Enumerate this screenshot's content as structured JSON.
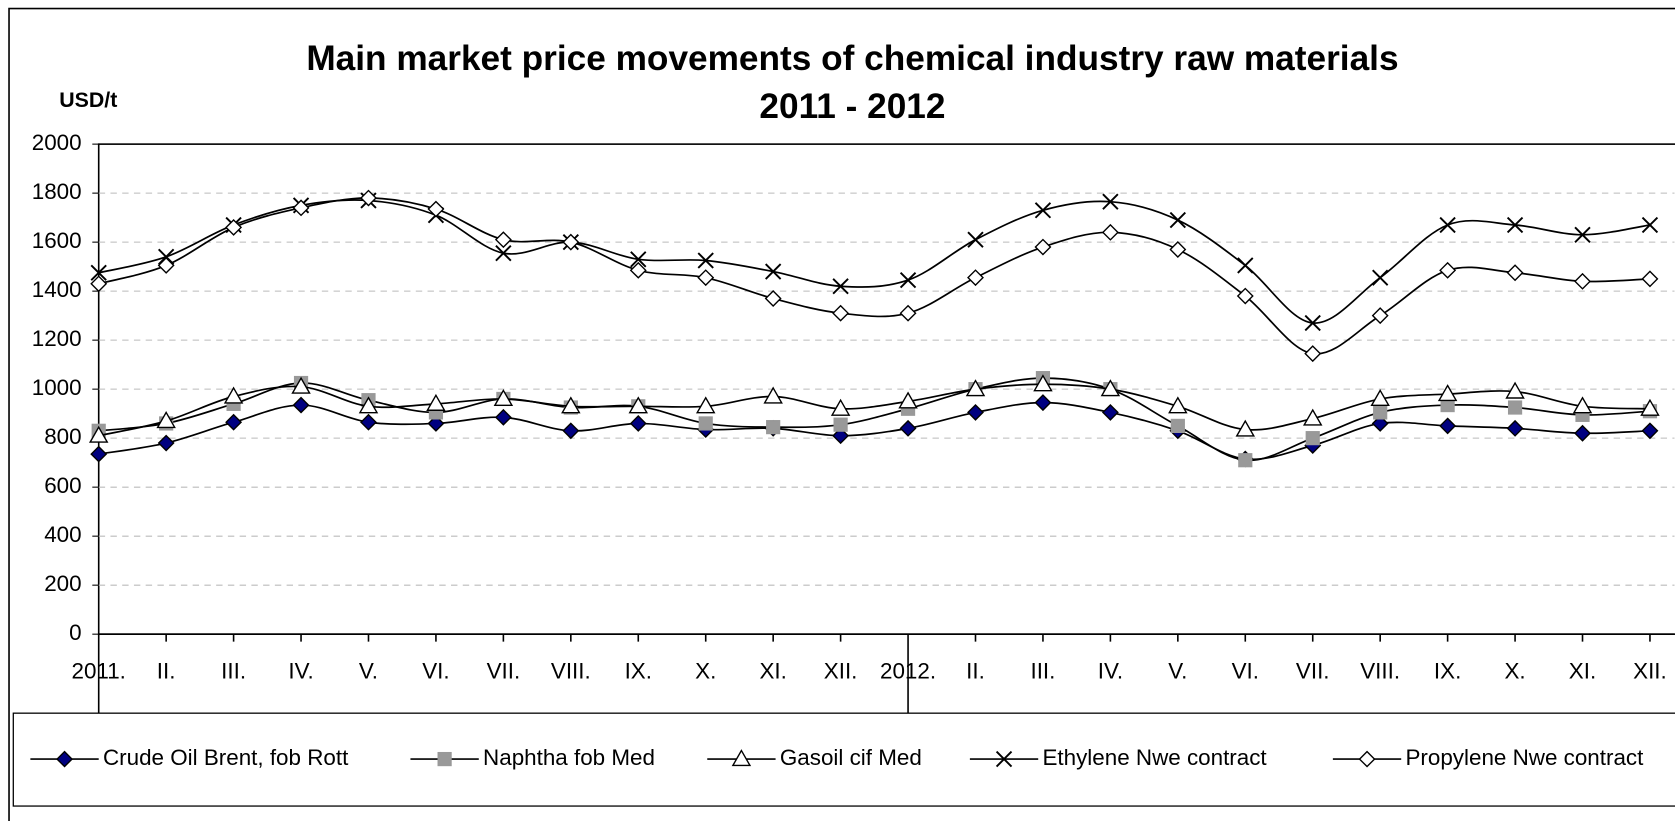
{
  "chart_data": {
    "type": "line",
    "title": "Main market price movements of chemical industry raw materials",
    "subtitle": "2011 - 2012",
    "y_label": "USD/t",
    "categories": [
      "2011.",
      "II.",
      "III.",
      "IV.",
      "V.",
      "VI.",
      "VII.",
      "VIII.",
      "IX.",
      "X.",
      "XI.",
      "XII.",
      "2012.",
      "II.",
      "III.",
      "IV.",
      "V.",
      "VI.",
      "VII.",
      "VIII.",
      "IX.",
      "X.",
      "XI.",
      "XII."
    ],
    "ylim": [
      0,
      2000
    ],
    "yticks": [
      0,
      200,
      400,
      600,
      800,
      1000,
      1200,
      1400,
      1600,
      1800,
      2000
    ],
    "grid": true,
    "legend": "bottom",
    "series": [
      {
        "name": "Crude Oil Brent, fob Rott",
        "color": "#000080",
        "marker": "diamond",
        "values": [
          735,
          780,
          865,
          935,
          865,
          860,
          885,
          830,
          860,
          835,
          840,
          810,
          840,
          905,
          945,
          905,
          830,
          715,
          770,
          860,
          850,
          840,
          820,
          830
        ]
      },
      {
        "name": "Naphtha fob Med",
        "color": "#999999",
        "marker": "square",
        "values": [
          830,
          860,
          940,
          1025,
          955,
          905,
          960,
          925,
          930,
          860,
          845,
          855,
          920,
          1000,
          1045,
          1000,
          850,
          710,
          800,
          905,
          935,
          925,
          895,
          910
        ]
      },
      {
        "name": "Gasoil cif Med",
        "color": "#ffffff",
        "marker": "triangle",
        "values": [
          810,
          870,
          970,
          1010,
          930,
          940,
          960,
          930,
          930,
          930,
          970,
          920,
          950,
          1000,
          1020,
          1000,
          930,
          835,
          880,
          960,
          980,
          990,
          930,
          920
        ]
      },
      {
        "name": "Ethylene Nwe contract",
        "color": "#000000",
        "marker": "cross",
        "values": [
          1475,
          1540,
          1670,
          1750,
          1770,
          1710,
          1555,
          1600,
          1530,
          1525,
          1480,
          1420,
          1445,
          1610,
          1730,
          1765,
          1690,
          1505,
          1270,
          1455,
          1670,
          1670,
          1630,
          1670
        ]
      },
      {
        "name": "Propylene Nwe contract",
        "color": "#ffffff",
        "marker": "diamond",
        "values": [
          1430,
          1505,
          1660,
          1740,
          1780,
          1735,
          1610,
          1600,
          1485,
          1455,
          1370,
          1310,
          1310,
          1455,
          1580,
          1640,
          1570,
          1380,
          1145,
          1300,
          1485,
          1475,
          1440,
          1450
        ]
      }
    ]
  }
}
